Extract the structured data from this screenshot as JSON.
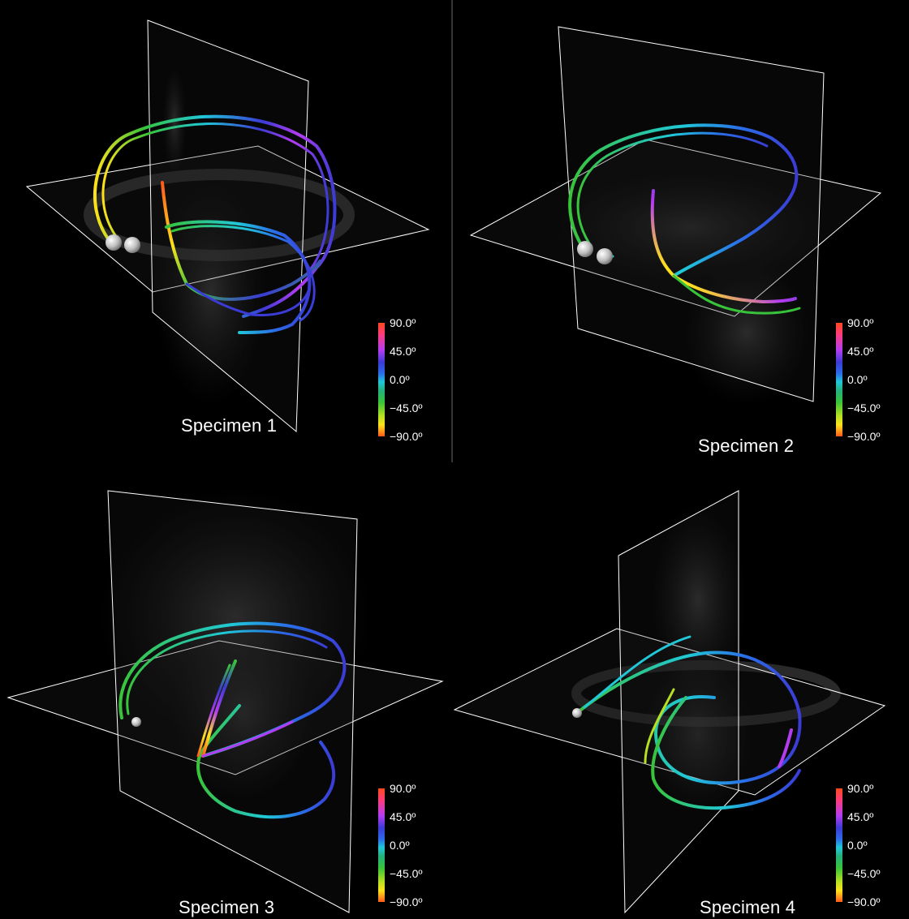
{
  "panels": [
    {
      "label": "Specimen 1"
    },
    {
      "label": "Specimen 2"
    },
    {
      "label": "Specimen 3"
    },
    {
      "label": "Specimen 4"
    }
  ],
  "colorbar": {
    "ticks": [
      "90.0º",
      "45.0º",
      "0.0º",
      "−45.0º",
      "−90.0º"
    ]
  },
  "colors": {
    "background": "#000000",
    "plane_edge": "#ffffff",
    "gradient": [
      "#ff4a1c",
      "#ff3b7a",
      "#b43cf0",
      "#3b3bd6",
      "#2a6fe8",
      "#20c8d8",
      "#24b07a",
      "#38c43a",
      "#b6e020",
      "#ffe21a",
      "#ff5a1a"
    ]
  }
}
